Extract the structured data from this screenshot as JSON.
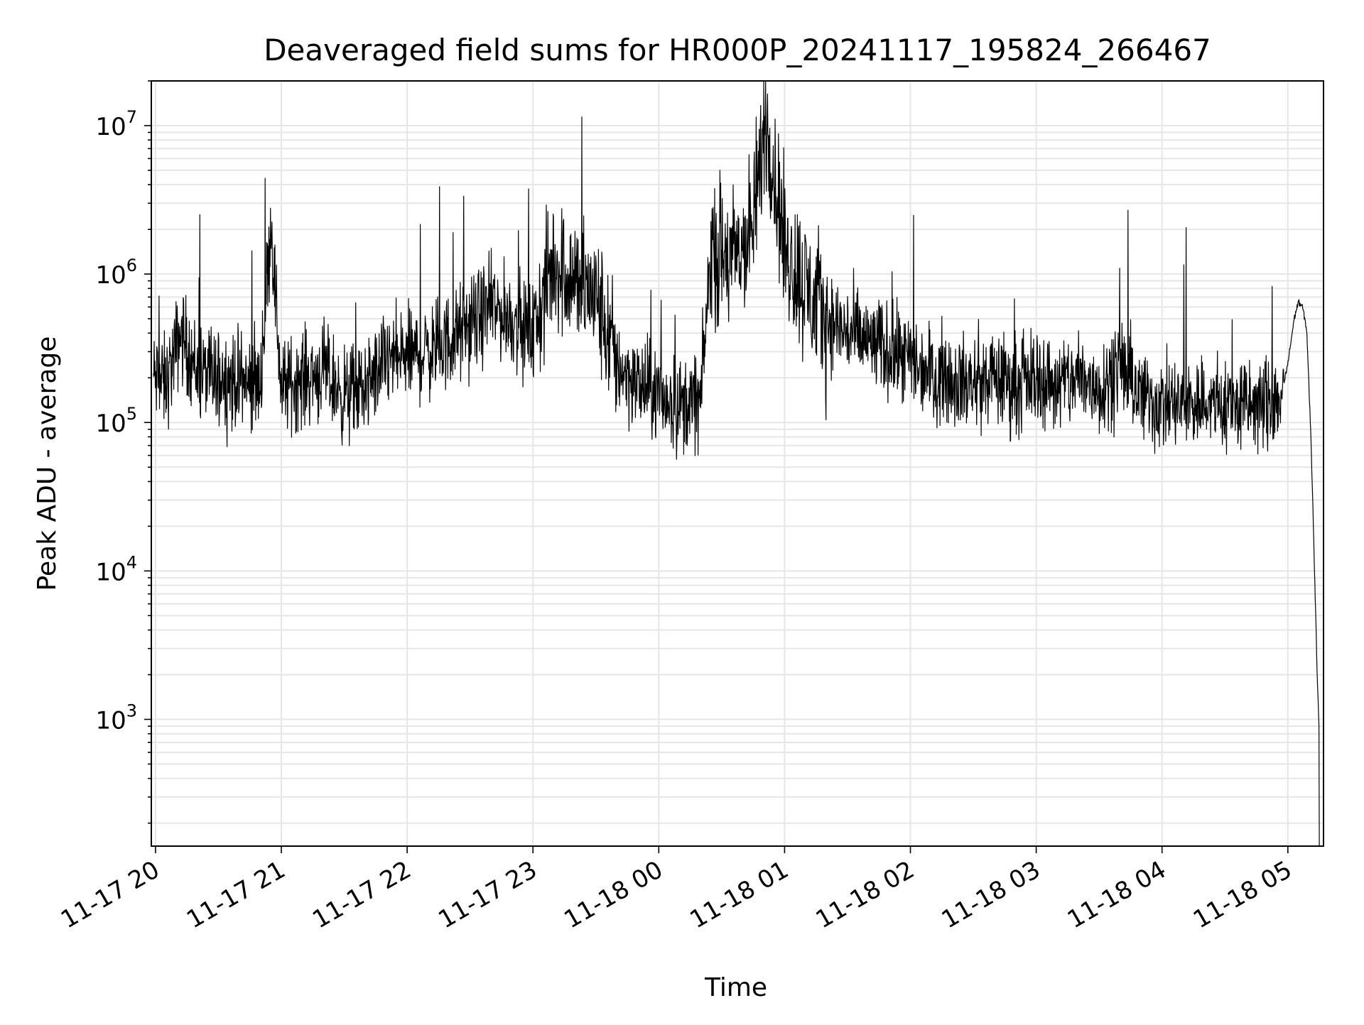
{
  "chart_data": {
    "type": "line",
    "title": "Deaveraged field sums for HR000P_20241117_195824_266467",
    "xlabel": "Time",
    "ylabel": "Peak ADU - average",
    "yscale": "log",
    "grid": true,
    "line_color": "#000000",
    "x_ticks": [
      "11-17 20",
      "11-17 21",
      "11-17 22",
      "11-17 23",
      "11-18 00",
      "11-18 01",
      "11-18 02",
      "11-18 03",
      "11-18 04",
      "11-18 05"
    ],
    "x_range": [
      "11-17 19:58",
      "11-18 05:17"
    ],
    "y_ticks": [
      {
        "base": "10",
        "exp": "3",
        "value": 1000
      },
      {
        "base": "10",
        "exp": "4",
        "value": 10000
      },
      {
        "base": "10",
        "exp": "5",
        "value": 100000
      },
      {
        "base": "10",
        "exp": "6",
        "value": 1000000
      },
      {
        "base": "10",
        "exp": "7",
        "value": 10000000
      }
    ],
    "ylim": [
      140,
      20000000
    ],
    "series": [
      {
        "values": [
          [
            "11-17 19:59",
            200000
          ],
          [
            "11-17 20:05",
            180000
          ],
          [
            "11-17 20:12",
            400000
          ],
          [
            "11-17 20:20",
            220000
          ],
          [
            "11-17 20:30",
            200000
          ],
          [
            "11-17 20:40",
            190000
          ],
          [
            "11-17 20:50",
            180000
          ],
          [
            "11-17 20:55",
            2300000
          ],
          [
            "11-17 21:00",
            170000
          ],
          [
            "11-17 21:10",
            200000
          ],
          [
            "11-17 21:20",
            220000
          ],
          [
            "11-17 21:30",
            150000
          ],
          [
            "11-17 21:40",
            170000
          ],
          [
            "11-17 21:50",
            260000
          ],
          [
            "11-17 22:00",
            280000
          ],
          [
            "11-17 22:10",
            300000
          ],
          [
            "11-17 22:20",
            350000
          ],
          [
            "11-17 22:30",
            450000
          ],
          [
            "11-17 22:40",
            600000
          ],
          [
            "11-17 22:50",
            500000
          ],
          [
            "11-17 23:00",
            400000
          ],
          [
            "11-17 23:10",
            1200000
          ],
          [
            "11-17 23:20",
            900000
          ],
          [
            "11-17 23:30",
            700000
          ],
          [
            "11-17 23:40",
            250000
          ],
          [
            "11-17 23:50",
            180000
          ],
          [
            "11-18 00:00",
            150000
          ],
          [
            "11-18 00:10",
            130000
          ],
          [
            "11-18 00:20",
            140000
          ],
          [
            "11-18 00:25",
            1500000
          ],
          [
            "11-18 00:35",
            1200000
          ],
          [
            "11-18 00:45",
            2000000
          ],
          [
            "11-18 00:51",
            12000000
          ],
          [
            "11-18 01:00",
            1500000
          ],
          [
            "11-18 01:10",
            800000
          ],
          [
            "11-18 01:20",
            500000
          ],
          [
            "11-18 01:30",
            400000
          ],
          [
            "11-18 01:40",
            350000
          ],
          [
            "11-18 01:50",
            300000
          ],
          [
            "11-18 02:00",
            250000
          ],
          [
            "11-18 02:10",
            220000
          ],
          [
            "11-18 02:20",
            200000
          ],
          [
            "11-18 02:30",
            180000
          ],
          [
            "11-18 02:40",
            200000
          ],
          [
            "11-18 02:50",
            180000
          ],
          [
            "11-18 03:00",
            200000
          ],
          [
            "11-18 03:10",
            180000
          ],
          [
            "11-18 03:20",
            200000
          ],
          [
            "11-18 03:30",
            170000
          ],
          [
            "11-18 03:40",
            250000
          ],
          [
            "11-18 03:50",
            150000
          ],
          [
            "11-18 04:00",
            130000
          ],
          [
            "11-18 04:10",
            130000
          ],
          [
            "11-18 04:20",
            140000
          ],
          [
            "11-18 04:30",
            130000
          ],
          [
            "11-18 04:40",
            130000
          ],
          [
            "11-18 04:50",
            130000
          ],
          [
            "11-18 04:57",
            150000
          ],
          [
            "11-18 05:00",
            250000
          ],
          [
            "11-18 05:03",
            500000
          ],
          [
            "11-18 05:05",
            650000
          ],
          [
            "11-18 05:07",
            600000
          ],
          [
            "11-18 05:09",
            420000
          ],
          [
            "11-18 05:11",
            80000
          ],
          [
            "11-18 05:12",
            25000
          ],
          [
            "11-18 05:14",
            2000
          ],
          [
            "11-18 05:15",
            800
          ],
          [
            "11-18 05:15",
            140
          ]
        ]
      }
    ]
  }
}
